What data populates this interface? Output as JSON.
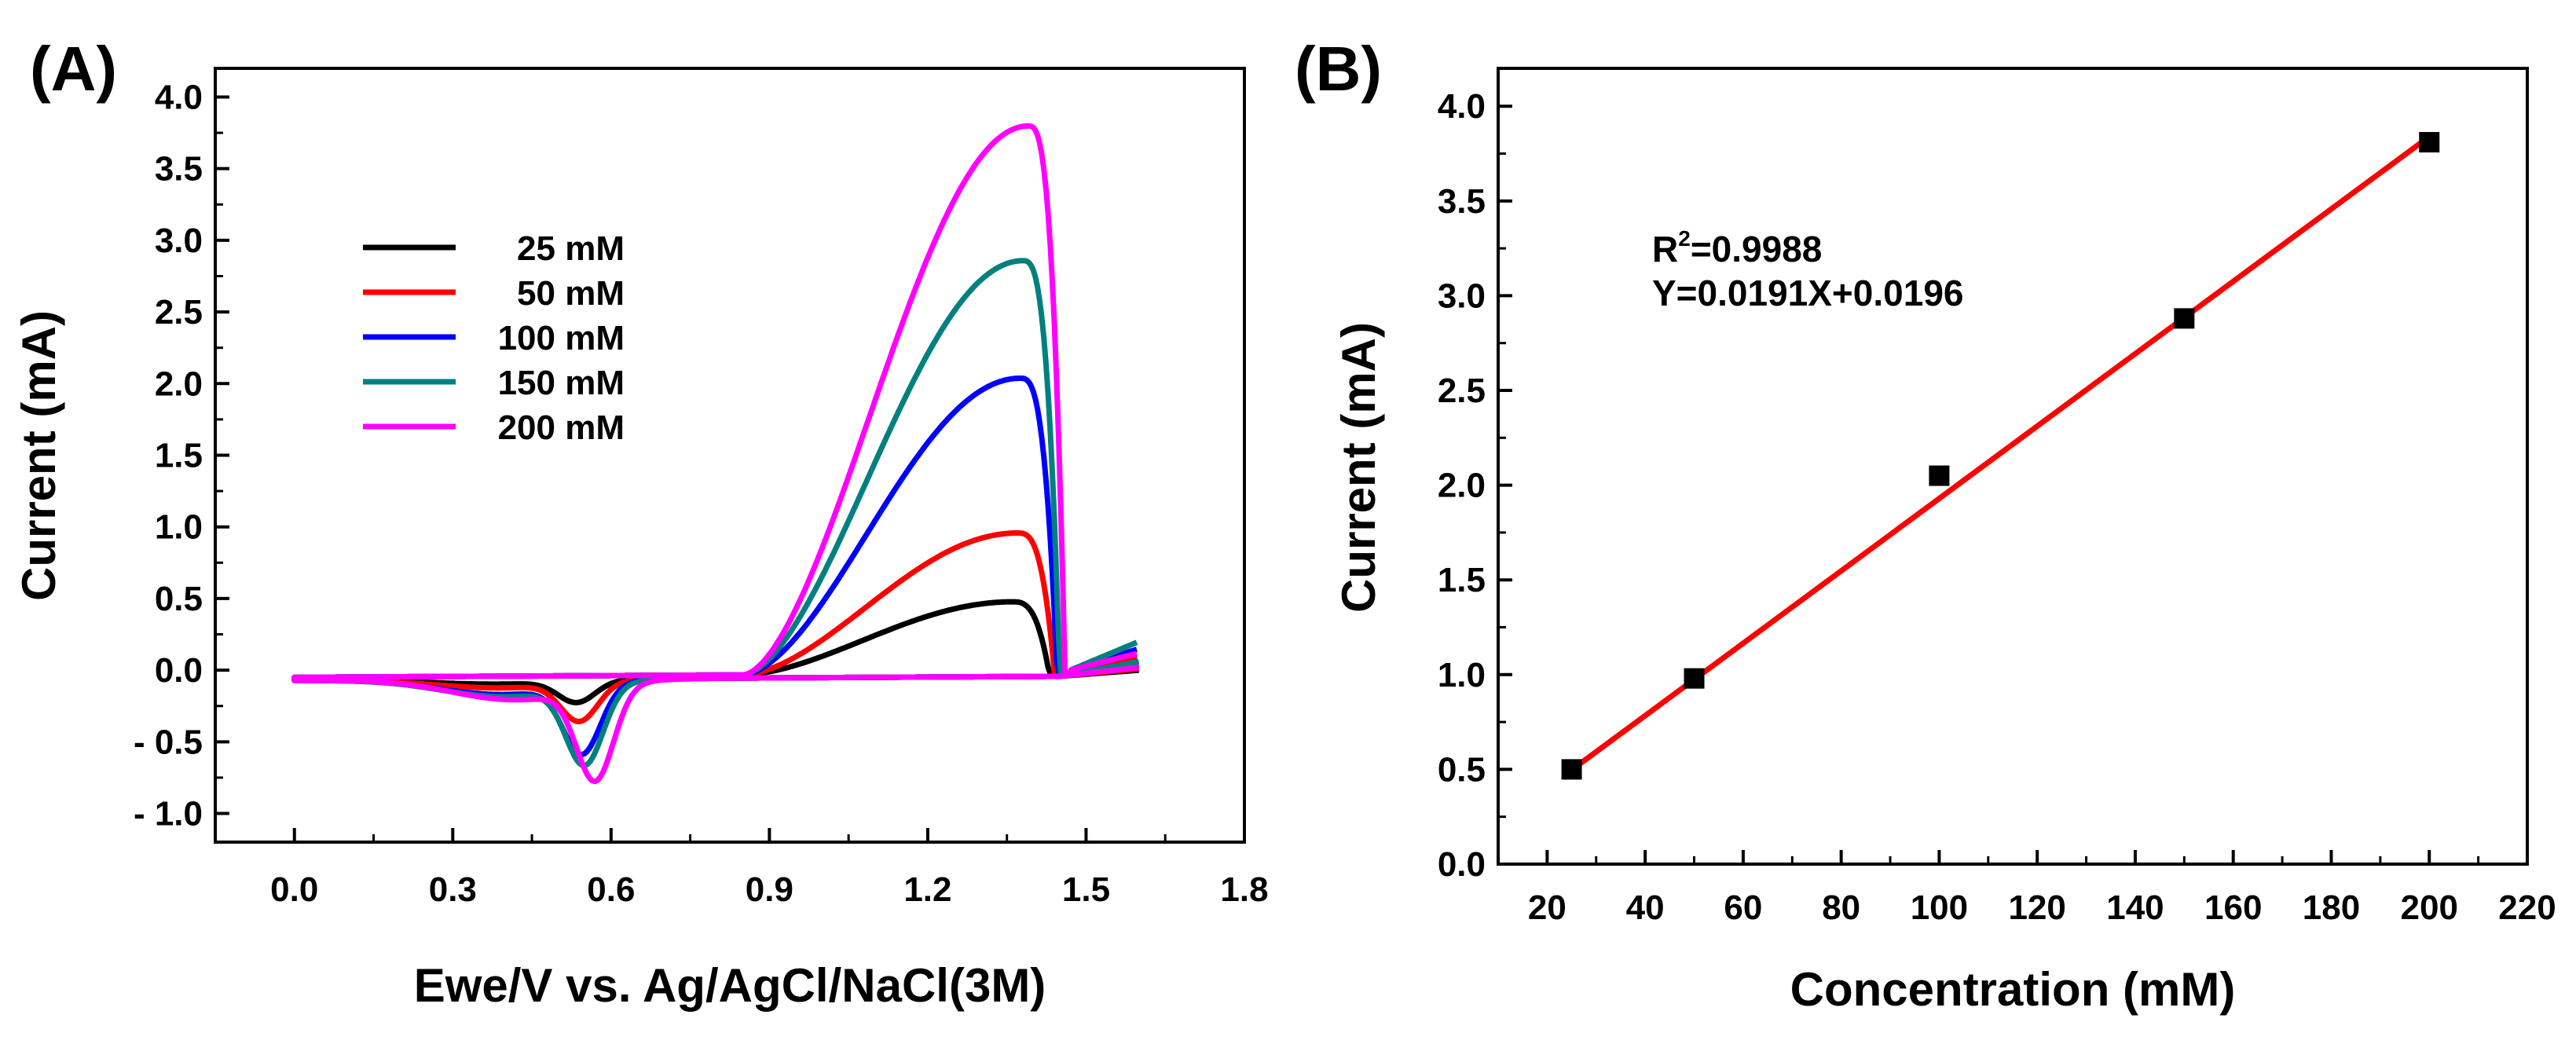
{
  "chart_data": [
    {
      "panel_label": "(A)",
      "type": "line",
      "title": "",
      "xlabel": "Ewe/V vs. Ag/AgCl/NaCl(3M)",
      "ylabel": "Current (mA)",
      "xlim": [
        -0.15,
        1.8
      ],
      "ylim": [
        -1.2,
        4.2
      ],
      "x_ticks": [
        0.0,
        0.3,
        0.6,
        0.9,
        1.2,
        1.5,
        1.8
      ],
      "x_tick_labels": [
        "0.0",
        "0.3",
        "0.6",
        "0.9",
        "1.2",
        "1.5",
        "1.8"
      ],
      "y_ticks": [
        4.0,
        3.5,
        3.0,
        2.5,
        2.0,
        1.5,
        1.0,
        0.5,
        0.0,
        -0.5,
        -1.0
      ],
      "y_tick_labels": [
        "4.0",
        "3.5",
        "3.0",
        "2.5",
        "2.0",
        "1.5",
        "1.0",
        "0.5",
        "0.0",
        "- 0.5",
        "- 1.0"
      ],
      "legend_location": "upper-left",
      "series": [
        {
          "name": "25 mM",
          "color": "#000000",
          "peak_x": 1.36,
          "peak_y": 0.5,
          "red_x": 0.535,
          "red_y": -0.15,
          "end_y": 0.08
        },
        {
          "name": "50 mM",
          "color": "#ff0000",
          "peak_x": 1.37,
          "peak_y": 0.98,
          "red_x": 0.54,
          "red_y": -0.27,
          "end_y": 0.1
        },
        {
          "name": "100 mM",
          "color": "#0000ff",
          "peak_x": 1.375,
          "peak_y": 2.06,
          "red_x": 0.545,
          "red_y": -0.48,
          "end_y": 0.15
        },
        {
          "name": "150 mM",
          "color": "#00807f",
          "peak_x": 1.38,
          "peak_y": 2.88,
          "red_x": 0.55,
          "red_y": -0.55,
          "end_y": 0.2
        },
        {
          "name": "200 mM",
          "color": "#ff00ff",
          "peak_x": 1.39,
          "peak_y": 3.82,
          "red_x": 0.57,
          "red_y": -0.65,
          "end_y": 0.12
        }
      ]
    },
    {
      "panel_label": "(B)",
      "type": "scatter",
      "title": "",
      "xlabel": "Concentration (mM)",
      "ylabel": "Current (mA)",
      "xlim": [
        10,
        220
      ],
      "ylim": [
        0.0,
        4.2
      ],
      "x_ticks": [
        20,
        40,
        60,
        80,
        100,
        120,
        140,
        160,
        180,
        200,
        220
      ],
      "x_tick_labels": [
        "20",
        "40",
        "60",
        "80",
        "100",
        "120",
        "140",
        "160",
        "180",
        "200",
        "220"
      ],
      "y_ticks": [
        0.0,
        0.5,
        1.0,
        1.5,
        2.0,
        2.5,
        3.0,
        3.5,
        4.0
      ],
      "y_tick_labels": [
        "0.0",
        "0.5",
        "1.0",
        "1.5",
        "2.0",
        "2.5",
        "3.0",
        "3.5",
        "4.0"
      ],
      "points": {
        "x": [
          25,
          50,
          100,
          150,
          200
        ],
        "y": [
          0.5,
          0.98,
          2.05,
          2.88,
          3.81
        ],
        "color": "#000000"
      },
      "fit": {
        "slope": 0.0191,
        "intercept": 0.0196,
        "x_range": [
          25,
          200
        ],
        "color": "#ff0000"
      },
      "annotation": {
        "r2_prefix": "R",
        "r2_sup": "2",
        "r2_value": "=0.9988",
        "equation": "Y=0.0191X+0.0196"
      }
    }
  ]
}
